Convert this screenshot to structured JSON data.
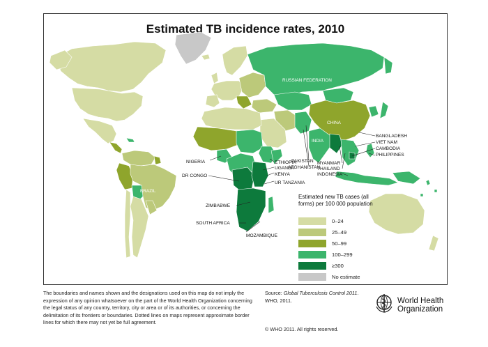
{
  "title": "Estimated TB incidence rates, 2010",
  "colors": {
    "c0": "#d5dca4",
    "c1": "#bcc97a",
    "c2": "#8fa52c",
    "c3": "#3cb56c",
    "c4": "#0d7a3c",
    "none": "#c8c8c8",
    "water": "#ffffff"
  },
  "legend": {
    "title": "Estimated new TB cases (all forms) per 100 000 population",
    "items": [
      {
        "label": "0–24",
        "color": "#d5dca4"
      },
      {
        "label": "25–49",
        "color": "#bcc97a"
      },
      {
        "label": "50–99",
        "color": "#8fa52c"
      },
      {
        "label": "100–299",
        "color": "#3cb56c"
      },
      {
        "label": "≥300",
        "color": "#0d7a3c"
      },
      {
        "label": "No estimate",
        "color": "#c8c8c8"
      }
    ]
  },
  "country_labels": {
    "russian_federation": "RUSSIAN FEDERATION",
    "china": "CHINA",
    "india": "INDIA",
    "brazil": "BRAZIL",
    "bangladesh": "BANGLADESH",
    "viet_nam": "VIET NAM",
    "cambodia": "CAMBODIA",
    "philippines": "PHILIPPINES",
    "pakistan": "PAKISTAN",
    "afghanistan": "AFGHANISTAN",
    "ethiopia": "ETHIOPIA",
    "uganda": "UGANDA",
    "kenya": "KENYA",
    "ur_tanzania": "UR TANZANIA",
    "myanmar": "MYANMAR",
    "thailand": "THAILAND",
    "indonesia": "INDONESIA",
    "nigeria": "NIGERIA",
    "dr_congo": "DR CONGO",
    "zimbabwe": "ZIMBABWE",
    "south_africa": "SOUTH AFRICA",
    "mozambique": "MOZAMBIQUE"
  },
  "disclaimer": "The boundaries and names shown and the designations used on this map do not imply the expression of any opinion whatsoever on the part of the World Health Organization concerning the legal status of any country, territory, city or area or of its authorities, or concerning the delimitation of its frontiers or boundaries. Dotted lines on maps represent approximate border lines for which there may not yet be full agreement.",
  "source": {
    "prefix": "Source: ",
    "italic": "Global Tuberculosis Control 2011",
    "suffix": ". WHO, 2011."
  },
  "copyright": "© WHO 2011. All rights reserved.",
  "who_name": "World Health Organization",
  "icons": [
    "who-emblem-icon"
  ]
}
